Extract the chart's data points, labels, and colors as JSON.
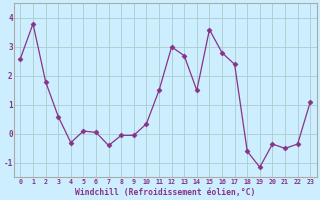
{
  "x": [
    0,
    1,
    2,
    3,
    4,
    5,
    6,
    7,
    8,
    9,
    10,
    11,
    12,
    13,
    14,
    15,
    16,
    17,
    18,
    19,
    20,
    21,
    22,
    23
  ],
  "y": [
    2.6,
    3.8,
    1.8,
    0.6,
    -0.3,
    0.1,
    0.05,
    -0.4,
    -0.05,
    -0.05,
    0.35,
    1.5,
    3.0,
    2.7,
    1.5,
    3.6,
    2.8,
    2.4,
    -0.6,
    -1.15,
    -0.35,
    -0.5,
    -0.35,
    1.1
  ],
  "line_color": "#883388",
  "marker": "D",
  "marker_size": 2.5,
  "bg_color": "#cceeff",
  "grid_color": "#aacccc",
  "border_color": "#aaaaaa",
  "xlabel": "Windchill (Refroidissement éolien,°C)",
  "xlabel_color": "#883388",
  "tick_color": "#883388",
  "ylim": [
    -1.5,
    4.5
  ],
  "xlim": [
    -0.5,
    23.5
  ],
  "yticks": [
    -1,
    0,
    1,
    2,
    3,
    4
  ],
  "xticks": [
    0,
    1,
    2,
    3,
    4,
    5,
    6,
    7,
    8,
    9,
    10,
    11,
    12,
    13,
    14,
    15,
    16,
    17,
    18,
    19,
    20,
    21,
    22,
    23
  ]
}
